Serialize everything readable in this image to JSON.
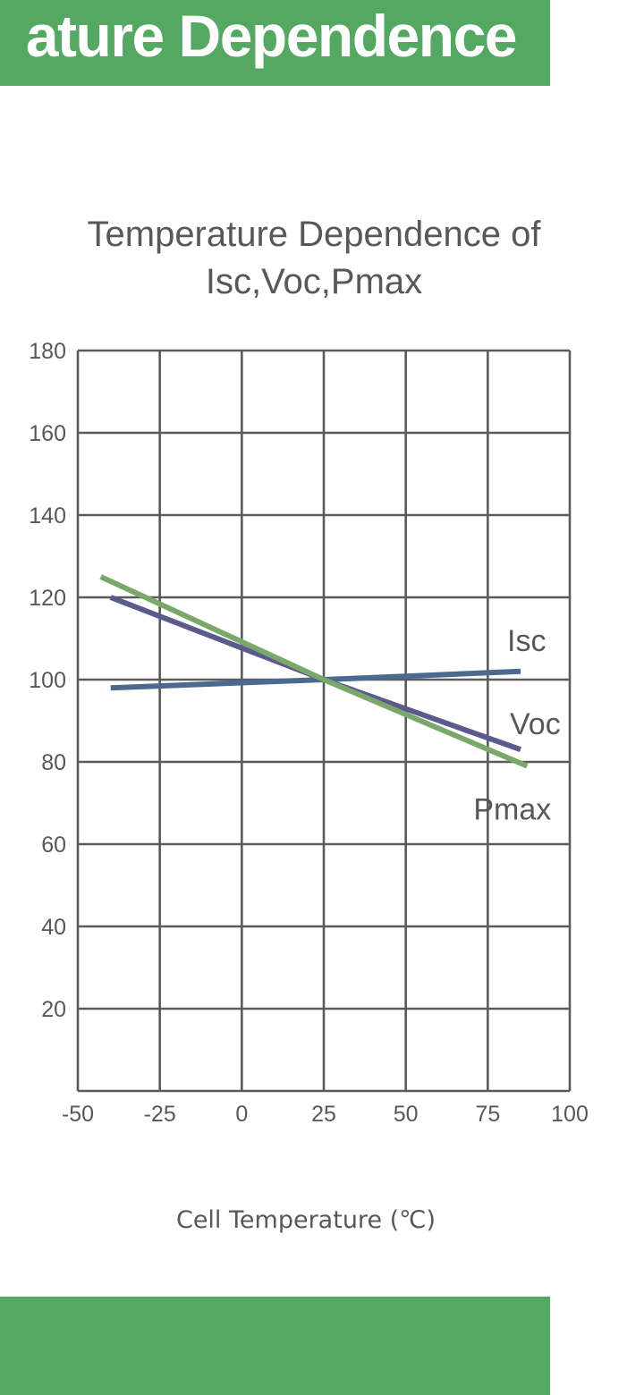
{
  "banner": {
    "title": "ature Dependence"
  },
  "colors": {
    "banner": "#55a862",
    "grid": "#5b5b5d",
    "text": "#58585a"
  },
  "chart_data": {
    "type": "line",
    "title_lines": [
      "Temperature Dependence of",
      "Isc,Voc,Pmax"
    ],
    "xlabel": "Cell Temperature (℃)",
    "ylabel": "",
    "xlim": [
      -50,
      100
    ],
    "ylim": [
      0,
      180
    ],
    "x_ticks": [
      -50,
      -25,
      0,
      25,
      50,
      75,
      100
    ],
    "y_ticks": [
      20,
      40,
      60,
      80,
      100,
      120,
      140,
      160,
      180
    ],
    "grid": true,
    "series": [
      {
        "name": "Isc",
        "x": [
          -40,
          25,
          85
        ],
        "y": [
          98,
          100,
          102
        ],
        "color": "#4c6a8e"
      },
      {
        "name": "Voc",
        "x": [
          -40,
          25,
          85
        ],
        "y": [
          120,
          100,
          83
        ],
        "color": "#5b5a8d"
      },
      {
        "name": "Pmax",
        "x": [
          -43,
          25,
          87
        ],
        "y": [
          125,
          100,
          79
        ],
        "color": "#7aa86b"
      }
    ]
  }
}
